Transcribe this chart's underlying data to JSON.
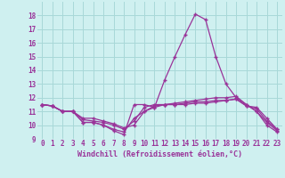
{
  "xlabel": "Windchill (Refroidissement éolien,°C)",
  "bg_color": "#cff0f0",
  "grid_color": "#a8d8d8",
  "line_color": "#993399",
  "marker": "+",
  "xlim": [
    -0.5,
    23.5
  ],
  "ylim": [
    9,
    19
  ],
  "xticks": [
    0,
    1,
    2,
    3,
    4,
    5,
    6,
    7,
    8,
    9,
    10,
    11,
    12,
    13,
    14,
    15,
    16,
    17,
    18,
    19,
    20,
    21,
    22,
    23
  ],
  "yticks": [
    9,
    10,
    11,
    12,
    13,
    14,
    15,
    16,
    17,
    18
  ],
  "series": [
    [
      11.5,
      11.4,
      11.0,
      11.0,
      10.2,
      10.2,
      10.0,
      9.6,
      9.3,
      11.5,
      11.5,
      11.3,
      13.3,
      15.0,
      16.6,
      18.1,
      17.7,
      15.0,
      13.0,
      12.0,
      11.5,
      11.0,
      10.0,
      9.5
    ],
    [
      11.5,
      11.4,
      11.0,
      11.0,
      10.2,
      10.2,
      10.0,
      9.7,
      9.5,
      10.5,
      11.0,
      11.3,
      11.5,
      11.6,
      11.7,
      11.8,
      11.9,
      12.0,
      12.0,
      12.1,
      11.5,
      11.0,
      10.2,
      9.6
    ],
    [
      11.5,
      11.4,
      11.0,
      11.0,
      10.4,
      10.3,
      10.2,
      10.0,
      9.7,
      10.3,
      11.3,
      11.5,
      11.5,
      11.5,
      11.6,
      11.7,
      11.7,
      11.8,
      11.8,
      11.9,
      11.4,
      11.3,
      10.5,
      9.7
    ],
    [
      11.5,
      11.4,
      11.0,
      11.0,
      10.5,
      10.5,
      10.3,
      10.1,
      9.8,
      10.0,
      11.0,
      11.4,
      11.5,
      11.5,
      11.5,
      11.6,
      11.6,
      11.7,
      11.8,
      11.9,
      11.4,
      11.2,
      10.3,
      9.7
    ]
  ],
  "tick_fontsize": 5.5,
  "xlabel_fontsize": 6.0,
  "linewidth": 0.9,
  "markersize": 3.5
}
